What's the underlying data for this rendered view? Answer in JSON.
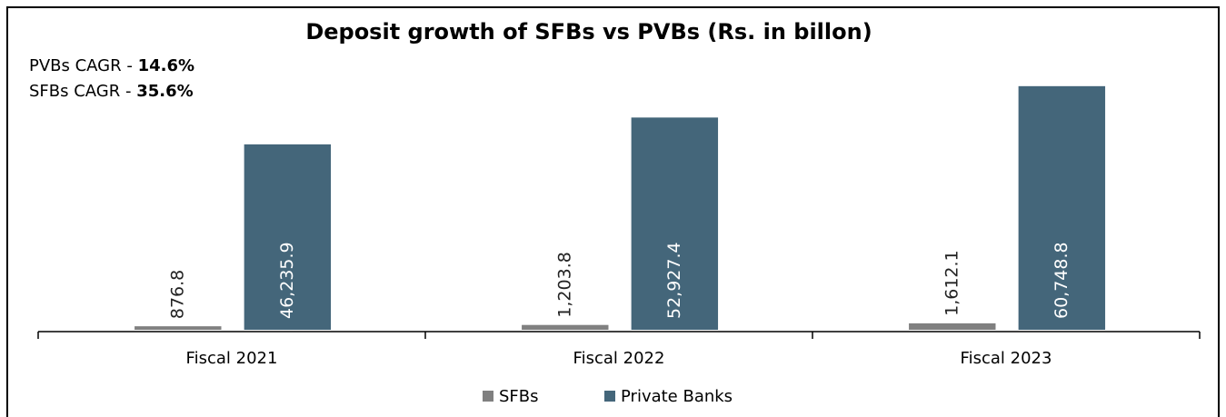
{
  "chart_data": {
    "type": "bar",
    "title": "Deposit growth of SFBs vs PVBs (Rs. in billon)",
    "annotations": [
      {
        "text": "PVBs CAGR - ",
        "value": "14.6%"
      },
      {
        "text": "SFBs CAGR - ",
        "value": "35.6%"
      }
    ],
    "categories": [
      "Fiscal 2021",
      "Fiscal 2022",
      "Fiscal 2023"
    ],
    "series": [
      {
        "name": "SFBs",
        "color": "#808080",
        "values": [
          876.8,
          1203.8,
          1612.1
        ],
        "value_labels": [
          "876.8",
          "1,203.8",
          "1,612.1"
        ]
      },
      {
        "name": "Private Banks",
        "color": "#44667a",
        "values": [
          46235.9,
          52927.4,
          60748.8
        ],
        "value_labels": [
          "46,235.9",
          "52,927.4",
          "60,748.8"
        ]
      }
    ],
    "ylim": [
      0,
      70000
    ]
  }
}
